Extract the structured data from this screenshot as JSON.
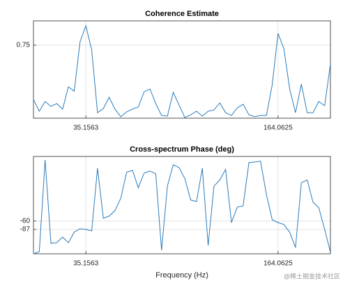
{
  "chart_data": [
    {
      "type": "line",
      "title": "Coherence Estimate",
      "x": [
        0,
        3.90625,
        7.8125,
        11.71875,
        15.625,
        19.53125,
        23.4375,
        27.34375,
        31.25,
        35.15625,
        39.0625,
        42.96875,
        46.875,
        50.78125,
        54.6875,
        58.59375,
        62.5,
        66.40625,
        70.3125,
        74.21875,
        78.125,
        82.03125,
        85.9375,
        89.84375,
        93.75,
        97.65625,
        101.5625,
        105.46875,
        109.375,
        113.28125,
        117.1875,
        121.09375,
        125,
        128.90625,
        132.8125,
        136.71875,
        140.625,
        144.53125,
        148.4375,
        152.34375,
        156.25,
        160.15625,
        164.0625,
        167.96875,
        171.875,
        175.78125,
        179.6875,
        183.59375,
        187.5,
        191.40625,
        195.3125,
        199.21875
      ],
      "series": [
        {
          "color": "#2b7bba",
          "values": [
            0.416,
            0.343,
            0.403,
            0.373,
            0.39,
            0.356,
            0.493,
            0.467,
            0.771,
            0.87,
            0.72,
            0.334,
            0.36,
            0.429,
            0.356,
            0.309,
            0.339,
            0.356,
            0.369,
            0.463,
            0.48,
            0.39,
            0.317,
            0.313,
            0.459,
            0.381,
            0.304,
            0.321,
            0.343,
            0.313,
            0.343,
            0.351,
            0.394,
            0.334,
            0.317,
            0.364,
            0.386,
            0.321,
            0.309,
            0.317,
            0.317,
            0.506,
            0.823,
            0.729,
            0.48,
            0.334,
            0.51,
            0.334,
            0.334,
            0.403,
            0.377,
            0.634
          ]
        }
      ],
      "xlim": [
        0,
        199.21875
      ],
      "xticks": [
        {
          "value": 35.15625,
          "label": "35.1563"
        },
        164.0625
      ],
      "ylim": [
        0.3,
        0.9
      ],
      "yticks": [
        0.75
      ],
      "grid": true
    },
    {
      "type": "line",
      "title": "Cross-spectrum Phase (deg)",
      "xlabel": "Frequency (Hz)",
      "x": [
        0,
        3.90625,
        7.8125,
        11.71875,
        15.625,
        19.53125,
        23.4375,
        27.34375,
        31.25,
        35.15625,
        39.0625,
        42.96875,
        46.875,
        50.78125,
        54.6875,
        58.59375,
        62.5,
        66.40625,
        70.3125,
        74.21875,
        78.125,
        82.03125,
        85.9375,
        89.84375,
        93.75,
        97.65625,
        101.5625,
        105.46875,
        109.375,
        113.28125,
        117.1875,
        121.09375,
        125,
        128.90625,
        132.8125,
        136.71875,
        140.625,
        144.53125,
        148.4375,
        152.34375,
        156.25,
        160.15625,
        164.0625,
        167.96875,
        171.875,
        175.78125,
        179.6875,
        183.59375,
        187.5,
        191.40625,
        195.3125,
        199.21875
      ],
      "series": [
        {
          "color": "#2b7bba",
          "values": [
            -166,
            -159,
            138,
            -132,
            -130,
            -112,
            -130,
            -96,
            -85,
            -87,
            -92,
            111,
            -51,
            -44,
            -26,
            14,
            98,
            104,
            48,
            95,
            102,
            93,
            -155,
            53,
            122,
            113,
            77,
            8,
            3,
            111,
            -139,
            53,
            73,
            107,
            -65,
            -15,
            -11,
            129,
            131,
            134,
            26,
            -56,
            -65,
            -71,
            -96,
            -146,
            64,
            73,
            1,
            -17,
            -87,
            -161
          ]
        }
      ],
      "xlim": [
        0,
        199.21875
      ],
      "xticks": [
        {
          "value": 35.15625,
          "label": "35.1563"
        },
        164.0625
      ],
      "ylim": [
        -166,
        149
      ],
      "yticks": [
        -87,
        -60
      ],
      "grid": true
    }
  ],
  "watermark": "@稀土掘金技术社区"
}
